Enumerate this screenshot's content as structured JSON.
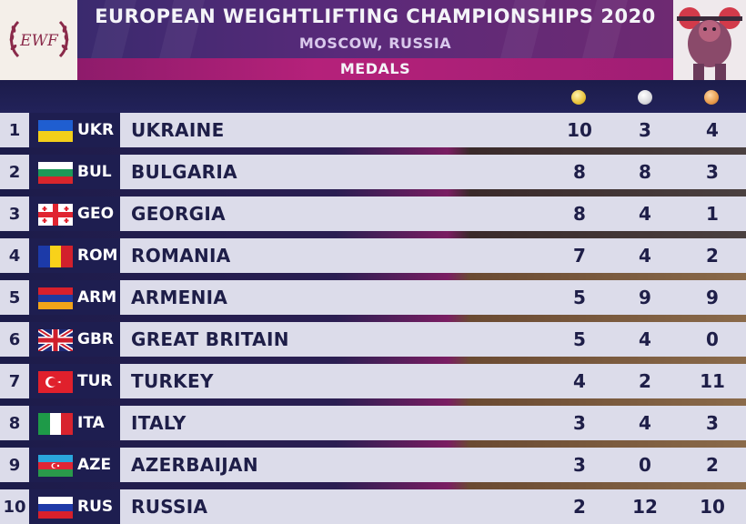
{
  "header": {
    "title": "EUROPEAN WEIGHTLIFTING CHAMPIONSHIPS 2020",
    "location": "MOSCOW, RUSSIA",
    "section": "MEDALS",
    "logo_left_text": "EWF"
  },
  "columns": {
    "gold_icon": "gold-medal-icon",
    "silver_icon": "silver-medal-icon",
    "bronze_icon": "bronze-medal-icon",
    "gold_color": "#e8c23a",
    "silver_color": "#d8d8dc",
    "bronze_color": "#e89a4a"
  },
  "rows": [
    {
      "rank": "1",
      "code": "UKR",
      "name": "UKRAINE",
      "gold": "10",
      "silver": "3",
      "bronze": "4"
    },
    {
      "rank": "2",
      "code": "BUL",
      "name": "BULGARIA",
      "gold": "8",
      "silver": "8",
      "bronze": "3"
    },
    {
      "rank": "3",
      "code": "GEO",
      "name": "GEORGIA",
      "gold": "8",
      "silver": "4",
      "bronze": "1"
    },
    {
      "rank": "4",
      "code": "ROM",
      "name": "ROMANIA",
      "gold": "7",
      "silver": "4",
      "bronze": "2"
    },
    {
      "rank": "5",
      "code": "ARM",
      "name": "ARMENIA",
      "gold": "5",
      "silver": "9",
      "bronze": "9"
    },
    {
      "rank": "6",
      "code": "GBR",
      "name": "GREAT BRITAIN",
      "gold": "5",
      "silver": "4",
      "bronze": "0"
    },
    {
      "rank": "7",
      "code": "TUR",
      "name": "TURKEY",
      "gold": "4",
      "silver": "2",
      "bronze": "11"
    },
    {
      "rank": "8",
      "code": "ITA",
      "name": "ITALY",
      "gold": "3",
      "silver": "4",
      "bronze": "3"
    },
    {
      "rank": "9",
      "code": "AZE",
      "name": "AZERBAIJAN",
      "gold": "3",
      "silver": "0",
      "bronze": "2"
    },
    {
      "rank": "10",
      "code": "RUS",
      "name": "RUSSIA",
      "gold": "2",
      "silver": "12",
      "bronze": "10"
    }
  ]
}
